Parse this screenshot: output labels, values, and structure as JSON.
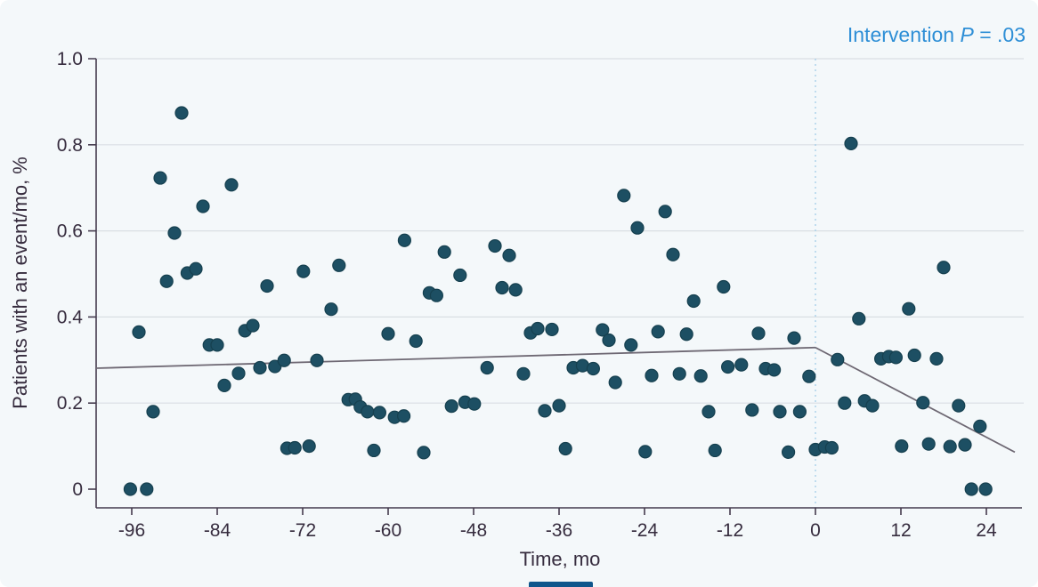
{
  "figure": {
    "annotation": {
      "prefix": "Intervention ",
      "p": "P",
      "suffix": " = .03"
    }
  },
  "chart_data": {
    "type": "scatter",
    "title": "",
    "annotation": "Intervention P = .03",
    "xlabel": "Time, mo",
    "ylabel": "Patients with an event/mo, %",
    "xlim": [
      -101,
      29
    ],
    "ylim": [
      0,
      1.0
    ],
    "x_ticks": [
      -96,
      -84,
      -72,
      -60,
      -48,
      -36,
      -24,
      -12,
      0,
      12,
      24
    ],
    "y_ticks": [
      0,
      0.2,
      0.4,
      0.6,
      0.8,
      1.0
    ],
    "grid": "horizontal",
    "legend": "none",
    "intervention_x": 0,
    "points": [
      [
        -96.2,
        0
      ],
      [
        -95,
        0.365
      ],
      [
        -93.9,
        0
      ],
      [
        -93,
        0.18
      ],
      [
        -92,
        0.723
      ],
      [
        -91.1,
        0.483
      ],
      [
        -90,
        0.595
      ],
      [
        -89,
        0.874
      ],
      [
        -88.2,
        0.502
      ],
      [
        -87,
        0.512
      ],
      [
        -86,
        0.657
      ],
      [
        -85.1,
        0.335
      ],
      [
        -84,
        0.335
      ],
      [
        -83,
        0.241
      ],
      [
        -82,
        0.707
      ],
      [
        -81,
        0.269
      ],
      [
        -80.1,
        0.368
      ],
      [
        -79,
        0.38
      ],
      [
        -78,
        0.282
      ],
      [
        -77,
        0.472
      ],
      [
        -75.9,
        0.285
      ],
      [
        -74.6,
        0.299
      ],
      [
        -74.2,
        0.095
      ],
      [
        -73.1,
        0.096
      ],
      [
        -71.9,
        0.506
      ],
      [
        -71.1,
        0.1
      ],
      [
        -70,
        0.299
      ],
      [
        -68,
        0.418
      ],
      [
        -66.9,
        0.52
      ],
      [
        -65.6,
        0.208
      ],
      [
        -64.6,
        0.209
      ],
      [
        -63.9,
        0.191
      ],
      [
        -62.9,
        0.18
      ],
      [
        -62,
        0.09
      ],
      [
        -61.2,
        0.178
      ],
      [
        -60,
        0.361
      ],
      [
        -59.1,
        0.167
      ],
      [
        -57.8,
        0.17
      ],
      [
        -57.7,
        0.578
      ],
      [
        -56.1,
        0.344
      ],
      [
        -55,
        0.085
      ],
      [
        -54.2,
        0.456
      ],
      [
        -53.2,
        0.45
      ],
      [
        -52.1,
        0.551
      ],
      [
        -51.1,
        0.193
      ],
      [
        -49.9,
        0.497
      ],
      [
        -49.2,
        0.202
      ],
      [
        -47.9,
        0.198
      ],
      [
        -46.1,
        0.282
      ],
      [
        -45,
        0.565
      ],
      [
        -44,
        0.468
      ],
      [
        -43,
        0.543
      ],
      [
        -42.1,
        0.463
      ],
      [
        -41,
        0.268
      ],
      [
        -40,
        0.363
      ],
      [
        -39,
        0.373
      ],
      [
        -38,
        0.182
      ],
      [
        -37,
        0.371
      ],
      [
        -36,
        0.194
      ],
      [
        -35.1,
        0.094
      ],
      [
        -34,
        0.282
      ],
      [
        -32.7,
        0.287
      ],
      [
        -31.2,
        0.28
      ],
      [
        -29.9,
        0.37
      ],
      [
        -29,
        0.346
      ],
      [
        -28.1,
        0.248
      ],
      [
        -26.9,
        0.682
      ],
      [
        -25.9,
        0.335
      ],
      [
        -25,
        0.607
      ],
      [
        -23.9,
        0.087
      ],
      [
        -23,
        0.264
      ],
      [
        -22.1,
        0.366
      ],
      [
        -21.1,
        0.645
      ],
      [
        -20,
        0.545
      ],
      [
        -19.1,
        0.268
      ],
      [
        -18.1,
        0.36
      ],
      [
        -17.1,
        0.437
      ],
      [
        -16.1,
        0.263
      ],
      [
        -15,
        0.18
      ],
      [
        -14.1,
        0.09
      ],
      [
        -12.9,
        0.47
      ],
      [
        -12.3,
        0.284
      ],
      [
        -10.4,
        0.289
      ],
      [
        -8.9,
        0.184
      ],
      [
        -8,
        0.362
      ],
      [
        -7,
        0.28
      ],
      [
        -5.8,
        0.277
      ],
      [
        -5,
        0.18
      ],
      [
        -3.8,
        0.086
      ],
      [
        -3,
        0.351
      ],
      [
        -2.2,
        0.18
      ],
      [
        -0.9,
        0.262
      ],
      [
        0,
        0.092
      ],
      [
        1.3,
        0.098
      ],
      [
        2.3,
        0.096
      ],
      [
        3.1,
        0.301
      ],
      [
        4.1,
        0.2
      ],
      [
        5,
        0.803
      ],
      [
        6.1,
        0.396
      ],
      [
        6.9,
        0.205
      ],
      [
        8,
        0.194
      ],
      [
        9.2,
        0.303
      ],
      [
        10.3,
        0.308
      ],
      [
        11.3,
        0.306
      ],
      [
        12.1,
        0.1
      ],
      [
        13.1,
        0.419
      ],
      [
        13.9,
        0.311
      ],
      [
        15.1,
        0.201
      ],
      [
        15.9,
        0.105
      ],
      [
        17,
        0.303
      ],
      [
        18,
        0.515
      ],
      [
        18.9,
        0.099
      ],
      [
        20.1,
        0.194
      ],
      [
        21,
        0.103
      ],
      [
        21.9,
        0
      ],
      [
        23.1,
        0.146
      ],
      [
        23.9,
        0
      ]
    ],
    "trend": {
      "pre": [
        [
          -101,
          0.281
        ],
        [
          0,
          0.329
        ]
      ],
      "post": [
        [
          0,
          0.329
        ],
        [
          28,
          0.086
        ]
      ]
    },
    "colors": {
      "dot": "#1d4f63",
      "dot_edge": "#16404f",
      "trend": "#6e6873",
      "grid": "#d9dee3",
      "axis": "#453b4e",
      "tick_text": "#362c3e",
      "annotation": "#2d8ed6",
      "intervention_line": "#a9cfe8",
      "background": "#f4f8fa",
      "crop_bar": "#0e568c"
    }
  }
}
